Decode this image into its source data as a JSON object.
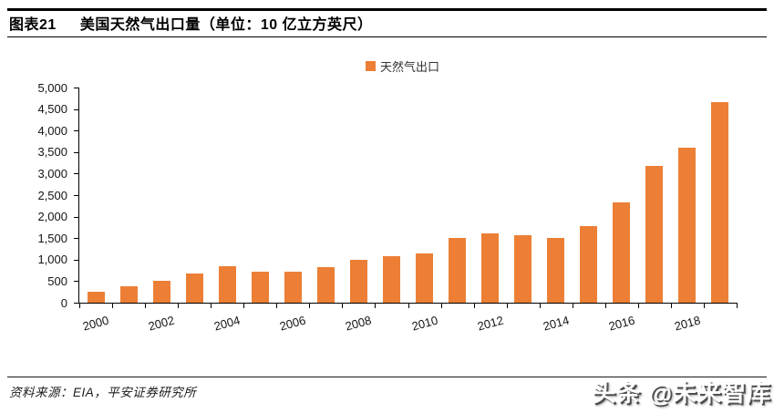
{
  "header": {
    "figure_label": "图表21",
    "title": "美国天然气出口量（单位：10 亿立方英尺）"
  },
  "legend": {
    "label": "天然气出口",
    "swatch_color": "#EC7F35"
  },
  "chart_data": {
    "type": "bar",
    "title": "美国天然气出口量",
    "unit": "10 亿立方英尺",
    "series_name": "天然气出口",
    "categories": [
      2000,
      2001,
      2002,
      2003,
      2004,
      2005,
      2006,
      2007,
      2008,
      2009,
      2010,
      2011,
      2012,
      2013,
      2014,
      2015,
      2016,
      2017,
      2018,
      2019
    ],
    "values": [
      244,
      373,
      516,
      680,
      854,
      729,
      724,
      822,
      1006,
      1072,
      1137,
      1506,
      1619,
      1572,
      1514,
      1784,
      2335,
      3170,
      3607,
      4660
    ],
    "ylim": [
      0,
      5000
    ],
    "ytick_step": 500,
    "ytick_labels": [
      "0",
      "500",
      "1,000",
      "1,500",
      "2,000",
      "2,500",
      "3,000",
      "3,500",
      "4,000",
      "4,500",
      "5,000"
    ],
    "xtick_labels": [
      "2000",
      "2002",
      "2004",
      "2006",
      "2008",
      "2010",
      "2012",
      "2014",
      "2016",
      "2018"
    ],
    "bar_color": "#EC7F35",
    "grid": false,
    "legend_position": "top-center"
  },
  "footer": {
    "source": "资料来源：EIA，平安证券研究所"
  },
  "watermark": {
    "text": "头条 @未来智库"
  }
}
